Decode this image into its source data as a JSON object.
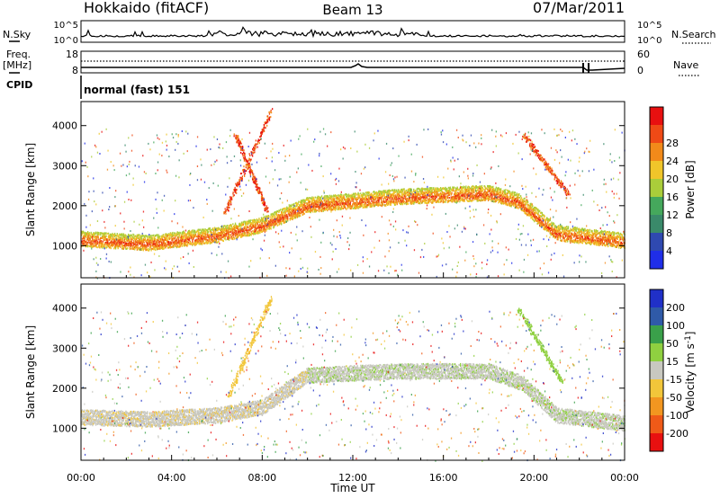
{
  "header": {
    "station": "Hokkaido (fitACF)",
    "beam": "Beam 13",
    "date": "07/Mar/2011"
  },
  "strips": {
    "nsky_label": "N.Sky",
    "nsky_ticks": [
      "10^5",
      "10^0"
    ],
    "nsearch_label": "N.Search",
    "nsearch_ticks": [
      "10^5",
      "10^0"
    ],
    "freq_label_line1": "Freq.",
    "freq_label_line2": "[MHz]",
    "freq_ticks": [
      "18",
      "8"
    ],
    "nave_label": "Nave",
    "nave_ticks": [
      "60",
      "0"
    ],
    "cpid_label": "CPID",
    "cpid_value": "normal (fast) 151"
  },
  "colors": {
    "power": [
      "#1f2ee8",
      "#2f49b0",
      "#3a8a6a",
      "#45a85c",
      "#aacd3a",
      "#f0c52a",
      "#f28a1a",
      "#ef4a16",
      "#e81010"
    ],
    "velocity": [
      "#e81010",
      "#ef5a18",
      "#f29620",
      "#f2c63a",
      "#c8c8c0",
      "#8fd040",
      "#3aa04a",
      "#2f5aa8",
      "#2030c8"
    ]
  },
  "chart_data": [
    {
      "type": "heatmap",
      "panel": "power",
      "ylabel": "Slant Range [km]",
      "ylim": [
        200,
        4600
      ],
      "yticks": [
        "1000",
        "2000",
        "3000",
        "4000"
      ],
      "xlim": [
        0,
        24
      ],
      "colorbar_label": "Power [dB]",
      "colorbar_ticks": [
        "4",
        "8",
        "12",
        "16",
        "20",
        "24",
        "28"
      ],
      "features": [
        {
          "type": "band",
          "points": [
            [
              0,
              1150
            ],
            [
              3,
              1050
            ],
            [
              6,
              1250
            ],
            [
              8,
              1500
            ],
            [
              10,
              2000
            ],
            [
              14,
              2200
            ],
            [
              18,
              2300
            ],
            [
              19.3,
              2100
            ],
            [
              21,
              1300
            ],
            [
              24,
              1100
            ]
          ]
        },
        {
          "type": "streak",
          "points": [
            [
              6.3,
              1800
            ],
            [
              8.4,
              4400
            ]
          ]
        },
        {
          "type": "streak",
          "points": [
            [
              6.8,
              3800
            ],
            [
              8.2,
              1900
            ]
          ]
        },
        {
          "type": "streak",
          "points": [
            [
              19.5,
              3800
            ],
            [
              21.5,
              2300
            ]
          ]
        }
      ]
    },
    {
      "type": "heatmap",
      "panel": "velocity",
      "ylabel": "Slant Range [km]",
      "ylim": [
        200,
        4600
      ],
      "yticks": [
        "1000",
        "2000",
        "3000",
        "4000"
      ],
      "xlim": [
        0,
        24
      ],
      "xlabel": "Time UT",
      "xticks": [
        "00:00",
        "04:00",
        "08:00",
        "12:00",
        "16:00",
        "20:00",
        "00:00"
      ],
      "colorbar_label": "Velocity [m s-1]",
      "colorbar_ticks": [
        "200",
        "100",
        "50",
        "15",
        "-15",
        "-50",
        "-100",
        "-200"
      ],
      "features": [
        {
          "type": "band",
          "points": [
            [
              0,
              1250
            ],
            [
              3,
              1200
            ],
            [
              6,
              1300
            ],
            [
              8,
              1500
            ],
            [
              10,
              2300
            ],
            [
              14,
              2400
            ],
            [
              18,
              2400
            ],
            [
              19.5,
              2100
            ],
            [
              21,
              1300
            ],
            [
              24,
              1100
            ]
          ]
        },
        {
          "type": "streak",
          "points": [
            [
              6.5,
              1800
            ],
            [
              8.4,
              4300
            ]
          ]
        },
        {
          "type": "streak",
          "points": [
            [
              19.3,
              4000
            ],
            [
              21.2,
              2200
            ]
          ]
        }
      ]
    }
  ]
}
